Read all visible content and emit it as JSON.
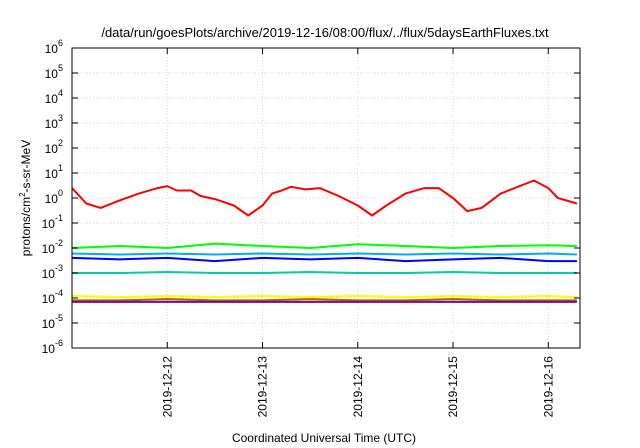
{
  "chart_data": {
    "type": "line",
    "title": "/data/run/goesPlots/archive/2019-12-16/08:00/flux/../flux/5daysEarthFluxes.txt",
    "xlabel": "Coordinated Universal Time (UTC)",
    "ylabel": "protons/cm2-s-sr-MeV",
    "ylabel_parts": {
      "before": "protons/cm",
      "superscript": "2",
      "after": "-s-sr-MeV"
    },
    "yscale": "log",
    "ylim": [
      1e-06,
      1000000.0
    ],
    "xlim": [
      "2019-12-11T00:00",
      "2019-12-16T08:00"
    ],
    "grid": true,
    "ytick_bases": [
      "10",
      "10",
      "10",
      "10",
      "10",
      "10",
      "10",
      "10",
      "10",
      "10",
      "10",
      "10",
      "10"
    ],
    "ytick_exponents": [
      "-6",
      "-5",
      "-4",
      "-3",
      "-2",
      "-1",
      "0",
      "1",
      "2",
      "3",
      "4",
      "5",
      "6"
    ],
    "xtick_labels": [
      "2019-12-12",
      "2019-12-13",
      "2019-12-14",
      "2019-12-15",
      "2019-12-16"
    ],
    "series": [
      {
        "color": "#ff0000",
        "x": [
          0,
          0.15,
          0.3,
          0.5,
          0.7,
          0.9,
          1.0,
          1.1,
          1.25,
          1.35,
          1.5,
          1.7,
          1.85,
          2.0,
          2.1,
          2.2,
          2.3,
          2.45,
          2.6,
          2.8,
          3.0,
          3.15,
          3.3,
          3.5,
          3.7,
          3.85,
          4.0,
          4.15,
          4.3,
          4.5,
          4.7,
          4.85,
          5.0,
          5.1,
          5.3
        ],
        "y": [
          2.5,
          0.6,
          0.4,
          0.8,
          1.5,
          2.5,
          3,
          2,
          2,
          1.2,
          0.9,
          0.5,
          0.2,
          0.5,
          1.5,
          2,
          2.8,
          2.2,
          2.5,
          1.2,
          0.5,
          0.2,
          0.5,
          1.5,
          2.5,
          2.5,
          1,
          0.3,
          0.4,
          1.5,
          3,
          5,
          2.5,
          1,
          0.6
        ]
      },
      {
        "color": "#00ff00",
        "x": [
          0,
          0.5,
          1.0,
          1.5,
          2.0,
          2.5,
          3.0,
          3.5,
          4.0,
          4.5,
          5.0,
          5.3
        ],
        "y": [
          0.01,
          0.012,
          0.01,
          0.015,
          0.012,
          0.01,
          0.014,
          0.012,
          0.01,
          0.012,
          0.013,
          0.012
        ]
      },
      {
        "color": "#0000ff",
        "x": [
          0,
          0.5,
          1.0,
          1.5,
          2.0,
          2.5,
          3.0,
          3.5,
          4.0,
          4.5,
          5.0,
          5.3
        ],
        "y": [
          0.004,
          0.0035,
          0.004,
          0.003,
          0.004,
          0.0035,
          0.004,
          0.003,
          0.0035,
          0.004,
          0.003,
          0.003
        ]
      },
      {
        "color": "#00aaff",
        "x": [
          0,
          0.5,
          1.0,
          1.5,
          2.0,
          2.5,
          3.0,
          3.5,
          4.0,
          4.5,
          5.0,
          5.3
        ],
        "y": [
          0.006,
          0.0055,
          0.006,
          0.0055,
          0.006,
          0.0055,
          0.006,
          0.0055,
          0.006,
          0.0055,
          0.006,
          0.0055
        ]
      },
      {
        "color": "#00ccaa",
        "x": [
          0,
          0.5,
          1.0,
          1.5,
          2.0,
          2.5,
          3.0,
          3.5,
          4.0,
          4.5,
          5.0,
          5.3
        ],
        "y": [
          0.001,
          0.001,
          0.0011,
          0.001,
          0.001,
          0.0011,
          0.001,
          0.001,
          0.0011,
          0.001,
          0.001,
          0.001
        ]
      },
      {
        "color": "#ffff00",
        "x": [
          0,
          0.5,
          1.0,
          1.5,
          2.0,
          2.5,
          3.0,
          3.5,
          4.0,
          4.5,
          5.0,
          5.3
        ],
        "y": [
          0.00012,
          0.00011,
          0.00012,
          0.00011,
          0.00012,
          0.00011,
          0.00012,
          0.00011,
          0.00012,
          0.00011,
          0.00012,
          0.00011
        ]
      },
      {
        "color": "#aa6600",
        "x": [
          0,
          0.5,
          1.0,
          1.5,
          2.0,
          2.5,
          3.0,
          3.5,
          4.0,
          4.5,
          5.0,
          5.3
        ],
        "y": [
          8e-05,
          8e-05,
          9e-05,
          8e-05,
          8e-05,
          9e-05,
          8e-05,
          8e-05,
          9e-05,
          8e-05,
          8e-05,
          8e-05
        ]
      },
      {
        "color": "#880088",
        "x": [
          0,
          0.5,
          1.0,
          1.5,
          2.0,
          2.5,
          3.0,
          3.5,
          4.0,
          4.5,
          5.0,
          5.3
        ],
        "y": [
          7e-05,
          7e-05,
          7e-05,
          7e-05,
          7e-05,
          7e-05,
          7e-05,
          7e-05,
          7e-05,
          7e-05,
          7e-05,
          7e-05
        ]
      }
    ]
  }
}
